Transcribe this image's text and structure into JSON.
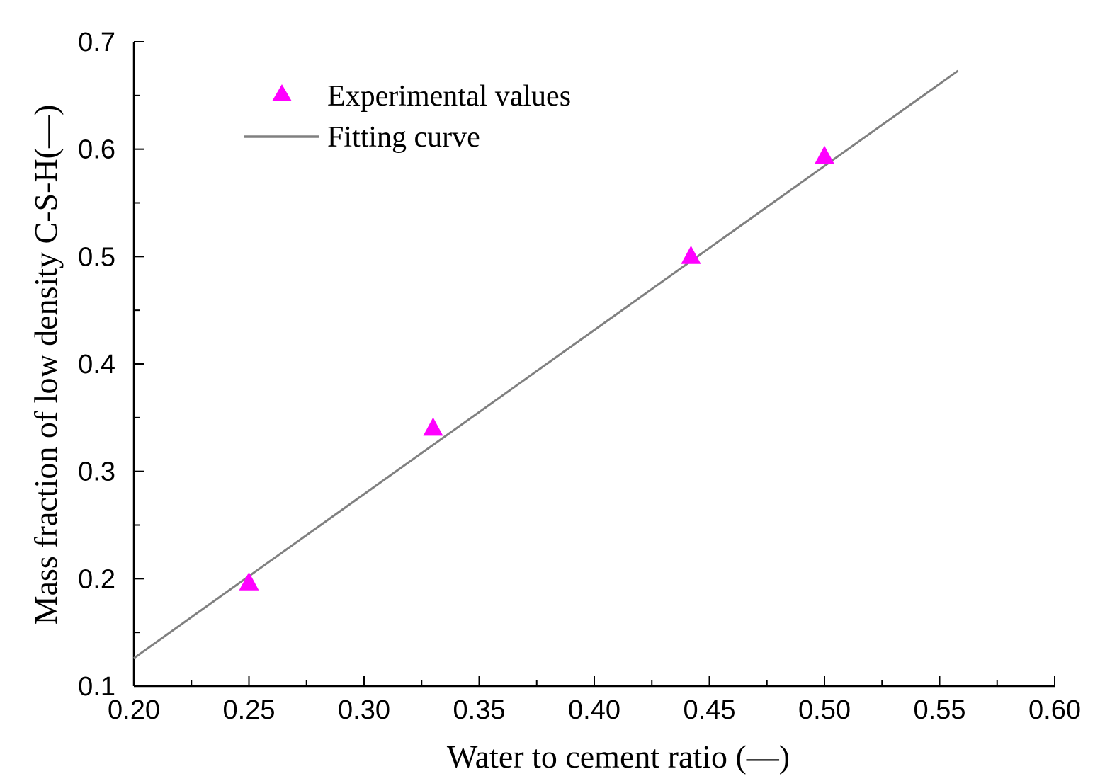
{
  "chart_data": {
    "type": "scatter",
    "title": "",
    "xlabel": "Water to cement ratio (—)",
    "ylabel": "Mass fraction of low density C-S-H(—)",
    "xlim": [
      0.2,
      0.6
    ],
    "ylim": [
      0.1,
      0.7
    ],
    "x_ticks": [
      "0.20",
      "0.25",
      "0.30",
      "0.35",
      "0.40",
      "0.45",
      "0.50",
      "0.55",
      "0.60"
    ],
    "y_ticks": [
      "0.1",
      "0.2",
      "0.3",
      "0.4",
      "0.5",
      "0.6",
      "0.7"
    ],
    "x_minor_step": 0.025,
    "y_minor_step": 0.05,
    "grid": false,
    "legend_position": "top-left",
    "series": [
      {
        "name": "Experimental values",
        "kind": "scatter",
        "marker": "triangle",
        "color": "#ff00ff",
        "x": [
          0.25,
          0.33,
          0.442,
          0.5
        ],
        "y": [
          0.197,
          0.341,
          0.501,
          0.594
        ]
      },
      {
        "name": "Fitting curve",
        "kind": "line",
        "color": "#808080",
        "x": [
          0.2,
          0.558
        ],
        "y": [
          0.126,
          0.673
        ]
      }
    ]
  }
}
